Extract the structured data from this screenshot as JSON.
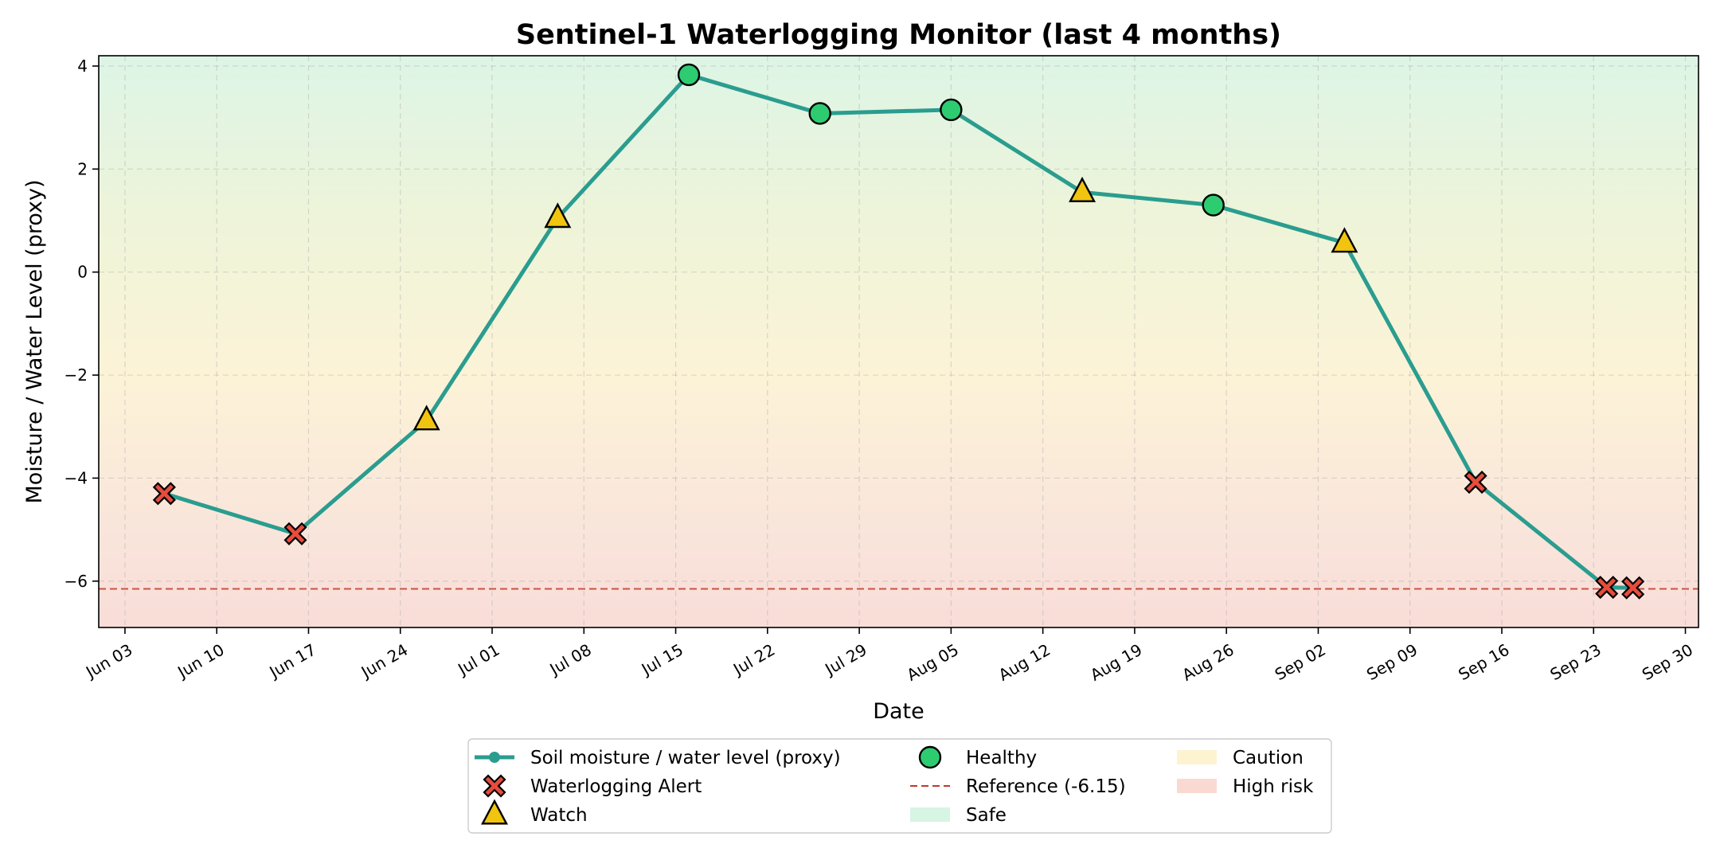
{
  "chart_data": {
    "type": "line",
    "title": "Sentinel-1 Waterlogging Monitor (last 4 months)",
    "xlabel": "Date",
    "ylabel": "Moisture / Water Level (proxy)",
    "x_axis": "date",
    "xlim": [
      "2025-06-01",
      "2025-10-01"
    ],
    "ylim": [
      -6.9,
      4.2
    ],
    "xticks": [
      {
        "date": "2025-06-03",
        "label": "Jun 03"
      },
      {
        "date": "2025-06-10",
        "label": "Jun 10"
      },
      {
        "date": "2025-06-17",
        "label": "Jun 17"
      },
      {
        "date": "2025-06-24",
        "label": "Jun 24"
      },
      {
        "date": "2025-07-01",
        "label": "Jul 01"
      },
      {
        "date": "2025-07-08",
        "label": "Jul 08"
      },
      {
        "date": "2025-07-15",
        "label": "Jul 15"
      },
      {
        "date": "2025-07-22",
        "label": "Jul 22"
      },
      {
        "date": "2025-07-29",
        "label": "Jul 29"
      },
      {
        "date": "2025-08-05",
        "label": "Aug 05"
      },
      {
        "date": "2025-08-12",
        "label": "Aug 12"
      },
      {
        "date": "2025-08-19",
        "label": "Aug 19"
      },
      {
        "date": "2025-08-26",
        "label": "Aug 26"
      },
      {
        "date": "2025-09-02",
        "label": "Sep 02"
      },
      {
        "date": "2025-09-09",
        "label": "Sep 09"
      },
      {
        "date": "2025-09-16",
        "label": "Sep 16"
      },
      {
        "date": "2025-09-23",
        "label": "Sep 23"
      },
      {
        "date": "2025-09-30",
        "label": "Sep 30"
      }
    ],
    "yticks": [
      {
        "value": 4,
        "label": "4"
      },
      {
        "value": 2,
        "label": "2"
      },
      {
        "value": 0,
        "label": "0"
      },
      {
        "value": -2,
        "label": "−2"
      },
      {
        "value": -4,
        "label": "−4"
      },
      {
        "value": -6,
        "label": "−6"
      }
    ],
    "grid": true,
    "series": [
      {
        "name": "Soil moisture / water level (proxy)",
        "color": "#2a9d8f",
        "points": [
          {
            "date": "2025-06-06",
            "value": -4.3,
            "status": "alert"
          },
          {
            "date": "2025-06-16",
            "value": -5.08,
            "status": "alert"
          },
          {
            "date": "2025-06-26",
            "value": -2.88,
            "status": "watch"
          },
          {
            "date": "2025-07-06",
            "value": 1.05,
            "status": "watch"
          },
          {
            "date": "2025-07-16",
            "value": 3.83,
            "status": "healthy"
          },
          {
            "date": "2025-07-26",
            "value": 3.08,
            "status": "healthy"
          },
          {
            "date": "2025-08-05",
            "value": 3.15,
            "status": "healthy"
          },
          {
            "date": "2025-08-15",
            "value": 1.55,
            "status": "watch"
          },
          {
            "date": "2025-08-25",
            "value": 1.3,
            "status": "healthy"
          },
          {
            "date": "2025-09-04",
            "value": 0.57,
            "status": "watch"
          },
          {
            "date": "2025-09-14",
            "value": -4.08,
            "status": "alert"
          },
          {
            "date": "2025-09-24",
            "value": -6.12,
            "status": "alert"
          },
          {
            "date": "2025-09-26",
            "value": -6.13,
            "status": "alert"
          }
        ]
      }
    ],
    "reference_line": {
      "value": -6.15,
      "label": "Reference (-6.15)",
      "color": "#c0392b"
    },
    "background_zones": [
      {
        "label": "Safe",
        "color": "#d6f5e3"
      },
      {
        "label": "Caution",
        "color": "#fdf3d0"
      },
      {
        "label": "High risk",
        "color": "#fbd9d3"
      }
    ],
    "gradient_stops": [
      {
        "value": 4.2,
        "color": "#ddf5e6"
      },
      {
        "value": 1.0,
        "color": "#eef4d9"
      },
      {
        "value": -2.0,
        "color": "#fcf3d7"
      },
      {
        "value": -5.0,
        "color": "#f9e5db"
      },
      {
        "value": -6.9,
        "color": "#f9ddd8"
      }
    ],
    "markers": {
      "healthy": {
        "label": "Healthy",
        "shape": "circle",
        "color": "#2ecc71"
      },
      "alert": {
        "label": "Waterlogging Alert",
        "shape": "x",
        "color": "#e74c3c"
      },
      "watch": {
        "label": "Watch",
        "shape": "triangle",
        "color": "#f1c40f"
      }
    },
    "legend": {
      "placement": "bottom-center",
      "entries": [
        {
          "label": "Soil moisture / water level (proxy)",
          "kind": "line"
        },
        {
          "label": "Waterlogging Alert",
          "kind": "alert"
        },
        {
          "label": "Watch",
          "kind": "watch"
        },
        {
          "label": "Healthy",
          "kind": "healthy"
        },
        {
          "label": "Reference (-6.15)",
          "kind": "reference"
        },
        {
          "label": "Safe",
          "kind": "zone-safe"
        },
        {
          "label": "Caution",
          "kind": "zone-caution"
        },
        {
          "label": "High risk",
          "kind": "zone-high"
        }
      ]
    }
  }
}
